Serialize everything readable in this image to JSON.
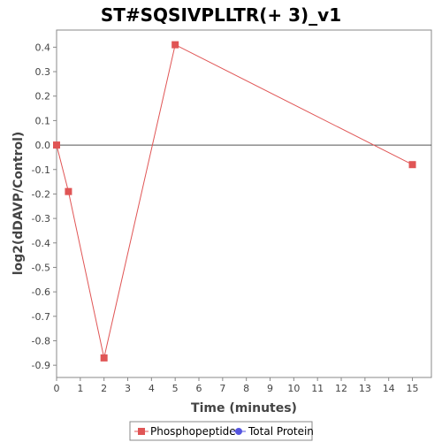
{
  "chart_data": {
    "type": "line",
    "title": "ST#SQSIVPLLTR(+ 3)_v1",
    "xlabel": "Time (minutes)",
    "ylabel": "log2(dDAVP/Control)",
    "xlim": [
      0,
      15.8
    ],
    "ylim": [
      -0.95,
      0.47
    ],
    "x_ticks": [
      0,
      1,
      2,
      3,
      4,
      5,
      6,
      7,
      8,
      9,
      10,
      11,
      12,
      13,
      14,
      15
    ],
    "y_ticks": [
      0.4,
      0.3,
      0.2,
      0.1,
      0.0,
      -0.1,
      -0.2,
      -0.3,
      -0.4,
      -0.5,
      -0.6,
      -0.7,
      -0.8,
      -0.9
    ],
    "y_tick_labels": [
      "0.4",
      "0.3",
      "0.2",
      "0.1",
      "0.0",
      "-0.1",
      "-0.2",
      "-0.3",
      "-0.4",
      "-0.5",
      "-0.6",
      "-0.7",
      "-0.8",
      "-0.9"
    ],
    "zero_line": true,
    "grid": false,
    "legend_position": "bottom",
    "series": [
      {
        "name": "Phosphopeptide",
        "color": "#e05555",
        "marker": "square",
        "x": [
          0,
          0.5,
          2,
          5,
          15
        ],
        "y": [
          0.0,
          -0.19,
          -0.87,
          0.41,
          -0.08
        ]
      },
      {
        "name": "Total Protein",
        "color": "#5555e0",
        "marker": "circle",
        "x": [],
        "y": []
      }
    ]
  }
}
